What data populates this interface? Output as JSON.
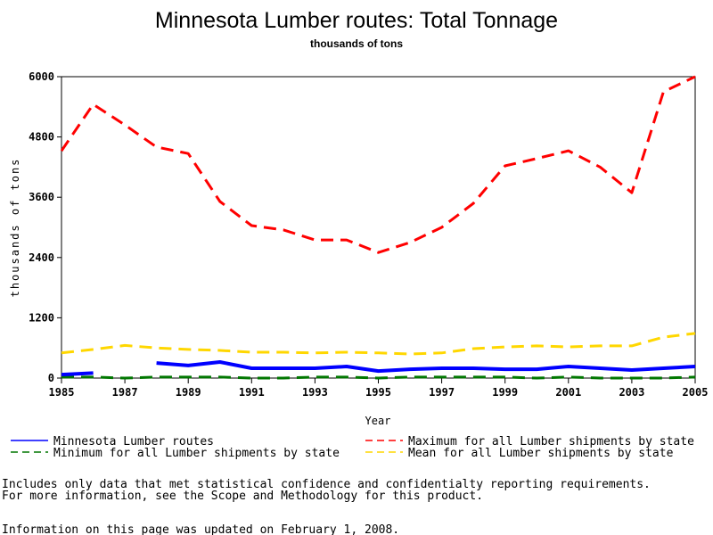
{
  "chart_data": {
    "type": "line",
    "title": "Minnesota Lumber routes: Total Tonnage",
    "subtitle": "thousands of tons",
    "xlabel": "Year",
    "ylabel": "thousands of tons",
    "xlim": [
      1985,
      2005
    ],
    "ylim": [
      0,
      6000
    ],
    "x_ticks": [
      "1985",
      "1987",
      "1989",
      "1991",
      "1993",
      "1995",
      "1997",
      "1999",
      "2001",
      "2003",
      "2005"
    ],
    "y_ticks": [
      "0",
      "1200",
      "2400",
      "3600",
      "4800",
      "6000"
    ],
    "x": [
      1985,
      1986,
      1987,
      1988,
      1989,
      1990,
      1991,
      1992,
      1993,
      1994,
      1995,
      1996,
      1997,
      1998,
      1999,
      2000,
      2001,
      2002,
      2003,
      2004,
      2005
    ],
    "series": [
      {
        "name": "Minnesota Lumber routes",
        "color": "#0000ff",
        "dash": "solid",
        "values": [
          70,
          100,
          null,
          300,
          250,
          320,
          195,
          195,
          195,
          230,
          140,
          175,
          195,
          195,
          175,
          175,
          230,
          195,
          160,
          195,
          230
        ]
      },
      {
        "name": "Maximum for all Lumber shipments by state",
        "color": "#ff0000",
        "dash": "dashed",
        "values": [
          4525,
          5450,
          5040,
          4600,
          4470,
          3515,
          3035,
          2950,
          2750,
          2750,
          2500,
          2700,
          3000,
          3480,
          4225,
          4370,
          4525,
          4200,
          3690,
          5700,
          6000
        ]
      },
      {
        "name": "Minimum for all Lumber shipments by state",
        "color": "#007700",
        "dash": "dashed",
        "values": [
          20,
          20,
          0,
          20,
          20,
          20,
          0,
          0,
          20,
          20,
          0,
          20,
          20,
          20,
          20,
          0,
          20,
          0,
          0,
          0,
          20
        ]
      },
      {
        "name": "Mean for all Lumber shipments by state",
        "color": "#ffd700",
        "dash": "dashed",
        "values": [
          500,
          570,
          650,
          600,
          570,
          550,
          515,
          515,
          500,
          515,
          500,
          480,
          500,
          585,
          620,
          640,
          620,
          640,
          640,
          815,
          890
        ]
      }
    ],
    "legend_placement": "bottom",
    "grid": false
  },
  "footer": {
    "note_line1": "Includes only data that met statistical confidence and confidentialty reporting requirements.",
    "note_line2": "For more information, see the Scope and Methodology for this product.",
    "updated": "Information on this page was updated on February 1, 2008."
  }
}
